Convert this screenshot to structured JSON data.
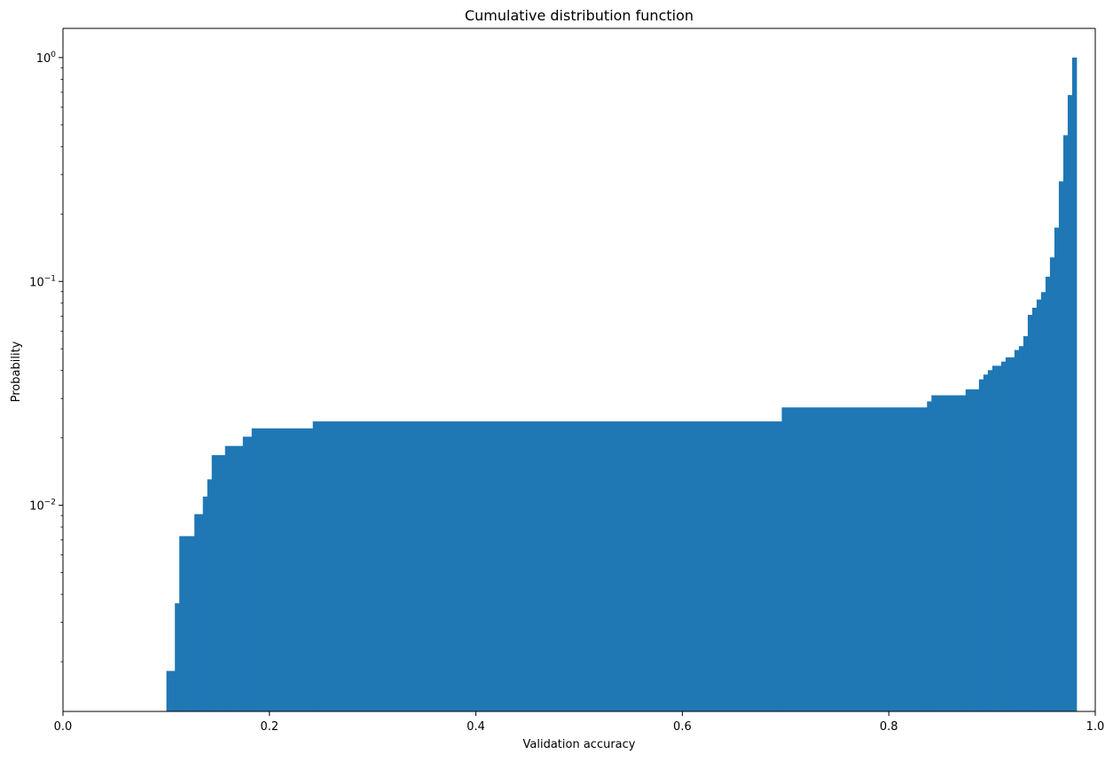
{
  "chart_data": {
    "type": "bar",
    "title": "Cumulative distribution function",
    "xlabel": "Validation accuracy",
    "ylabel": "Probability",
    "xlim": [
      0.0,
      1.0
    ],
    "ylim": [
      0.0012,
      1.35
    ],
    "yscale": "log",
    "grid": false,
    "legend": "none",
    "x_ticks": [
      {
        "value": 0.0,
        "label": "0.0"
      },
      {
        "value": 0.2,
        "label": "0.2"
      },
      {
        "value": 0.4,
        "label": "0.4"
      },
      {
        "value": 0.6,
        "label": "0.6"
      },
      {
        "value": 0.8,
        "label": "0.8"
      },
      {
        "value": 1.0,
        "label": "1.0"
      }
    ],
    "y_ticks": [
      {
        "value": 0.01,
        "mantissa": "10",
        "exponent": "−2"
      },
      {
        "value": 0.1,
        "mantissa": "10",
        "exponent": "−1"
      },
      {
        "value": 1.0,
        "mantissa": "10",
        "exponent": "0"
      }
    ],
    "series": [
      {
        "color": "#1f77b4",
        "steps": [
          {
            "x": 0.1002,
            "y": 0.00182
          },
          {
            "x": 0.1084,
            "y": 0.00365
          },
          {
            "x": 0.1127,
            "y": 0.00728
          },
          {
            "x": 0.1273,
            "y": 0.00913
          },
          {
            "x": 0.1355,
            "y": 0.01094
          },
          {
            "x": 0.1398,
            "y": 0.01306
          },
          {
            "x": 0.1441,
            "y": 0.01675
          },
          {
            "x": 0.157,
            "y": 0.01841
          },
          {
            "x": 0.1742,
            "y": 0.02025
          },
          {
            "x": 0.1828,
            "y": 0.02206
          },
          {
            "x": 0.242,
            "y": 0.0237
          },
          {
            "x": 0.6963,
            "y": 0.02737
          },
          {
            "x": 0.837,
            "y": 0.02912
          },
          {
            "x": 0.8413,
            "y": 0.03101
          },
          {
            "x": 0.8744,
            "y": 0.03296
          },
          {
            "x": 0.8873,
            "y": 0.03653
          },
          {
            "x": 0.8916,
            "y": 0.03836
          },
          {
            "x": 0.8959,
            "y": 0.04015
          },
          {
            "x": 0.9002,
            "y": 0.042
          },
          {
            "x": 0.9088,
            "y": 0.04384
          },
          {
            "x": 0.9131,
            "y": 0.04581
          },
          {
            "x": 0.9217,
            "y": 0.0494
          },
          {
            "x": 0.926,
            "y": 0.0514
          },
          {
            "x": 0.9303,
            "y": 0.05696
          },
          {
            "x": 0.9346,
            "y": 0.0709
          },
          {
            "x": 0.9389,
            "y": 0.0763
          },
          {
            "x": 0.9432,
            "y": 0.083
          },
          {
            "x": 0.9475,
            "y": 0.0896
          },
          {
            "x": 0.9518,
            "y": 0.105
          },
          {
            "x": 0.9561,
            "y": 0.128
          },
          {
            "x": 0.9604,
            "y": 0.174
          },
          {
            "x": 0.9647,
            "y": 0.28
          },
          {
            "x": 0.969,
            "y": 0.45
          },
          {
            "x": 0.9733,
            "y": 0.68
          },
          {
            "x": 0.9776,
            "y": 1.0
          }
        ],
        "x_end": 0.9819
      }
    ]
  }
}
